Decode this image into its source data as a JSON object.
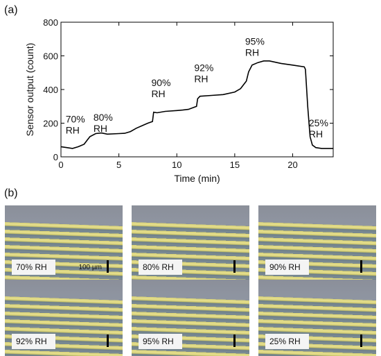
{
  "panel_a_label": "(a)",
  "panel_b_label": "(b)",
  "chart_data": {
    "type": "line",
    "xlabel": "Time (min)",
    "ylabel": "Sensor output (count)",
    "xlim": [
      0,
      23.5
    ],
    "ylim": [
      0,
      800
    ],
    "xticks": [
      0,
      5,
      10,
      15,
      20
    ],
    "yticks": [
      0,
      200,
      400,
      600,
      800
    ],
    "grid": false,
    "series": [
      {
        "x": [
          0,
          0.5,
          1,
          1.5,
          2,
          2.5,
          3,
          3.5,
          4,
          5,
          5.5,
          6,
          6.5,
          7,
          7.5,
          7.9,
          8,
          8.3,
          9,
          10,
          10.5,
          11,
          11.7,
          11.8,
          12,
          13,
          14,
          15,
          15.5,
          16,
          16.2,
          16.5,
          17,
          17.5,
          18,
          19,
          20,
          21,
          21.1,
          21.3,
          21.5,
          21.7,
          22,
          22.5,
          23,
          23.5
        ],
        "y": [
          60,
          55,
          50,
          60,
          75,
          120,
          138,
          142,
          135,
          138,
          140,
          150,
          170,
          185,
          200,
          210,
          265,
          262,
          270,
          275,
          278,
          282,
          300,
          345,
          360,
          365,
          370,
          385,
          405,
          450,
          505,
          545,
          560,
          570,
          570,
          555,
          545,
          535,
          520,
          300,
          120,
          70,
          55,
          50,
          50,
          50
        ]
      }
    ],
    "annotations": [
      {
        "line1": "70%",
        "line2": "RH",
        "x": 0.4,
        "y": 205
      },
      {
        "line1": "80%",
        "line2": "RH",
        "x": 2.8,
        "y": 215
      },
      {
        "line1": "90%",
        "line2": "RH",
        "x": 7.8,
        "y": 420
      },
      {
        "line1": "92%",
        "line2": "RH",
        "x": 11.5,
        "y": 510
      },
      {
        "line1": "95%",
        "line2": "RH",
        "x": 15.9,
        "y": 665
      },
      {
        "line1": "25%",
        "line2": "RH",
        "x": 21.4,
        "y": 182
      }
    ]
  },
  "micrographs": [
    {
      "label": "70% RH",
      "scale_text": "100 µm"
    },
    {
      "label": "80% RH"
    },
    {
      "label": "90% RH"
    },
    {
      "label": "92% RH"
    },
    {
      "label": "95% RH"
    },
    {
      "label": "25% RH"
    }
  ]
}
